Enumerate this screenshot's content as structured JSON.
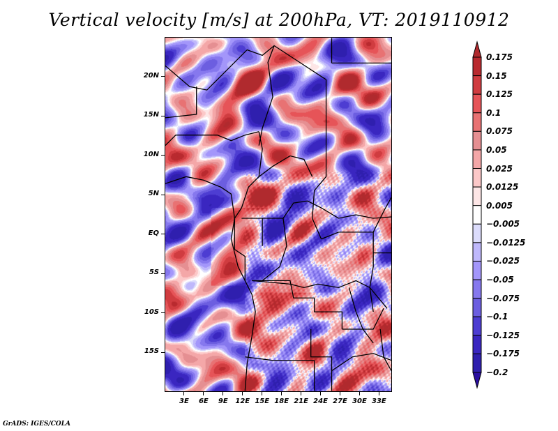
{
  "title": "Vertical velocity [m/s] at 200hPa, VT: 2019110912",
  "credit": "GrADS: IGES/COLA",
  "map": {
    "variable": "Vertical velocity",
    "units": "m/s",
    "level": "200hPa",
    "valid_time": "2019110912",
    "lon_range": [
      0,
      35
    ],
    "lat_range": [
      -20,
      25
    ],
    "lat_ticks": [
      {
        "value": 20,
        "label": "20N"
      },
      {
        "value": 15,
        "label": "15N"
      },
      {
        "value": 10,
        "label": "10N"
      },
      {
        "value": 5,
        "label": "5N"
      },
      {
        "value": 0,
        "label": "EQ"
      },
      {
        "value": -5,
        "label": "5S"
      },
      {
        "value": -10,
        "label": "10S"
      },
      {
        "value": -15,
        "label": "15S"
      }
    ],
    "lon_ticks": [
      {
        "value": 3,
        "label": "3E"
      },
      {
        "value": 6,
        "label": "6E"
      },
      {
        "value": 9,
        "label": "9E"
      },
      {
        "value": 12,
        "label": "12E"
      },
      {
        "value": 15,
        "label": "15E"
      },
      {
        "value": 18,
        "label": "18E"
      },
      {
        "value": 21,
        "label": "21E"
      },
      {
        "value": 24,
        "label": "24E"
      },
      {
        "value": 27,
        "label": "27E"
      },
      {
        "value": 30,
        "label": "30E"
      },
      {
        "value": 33,
        "label": "33E"
      }
    ]
  },
  "colorbar": {
    "labels": [
      "0.175",
      "0.15",
      "0.125",
      "0.1",
      "0.075",
      "0.05",
      "0.025",
      "0.0125",
      "0.005",
      "-0.005",
      "-0.0125",
      "-0.025",
      "-0.05",
      "-0.075",
      "-0.1",
      "-0.125",
      "-0.175",
      "-0.2"
    ],
    "top_arrow_color": "#b02a2e",
    "bottom_arrow_color": "#2a0ea0",
    "bins": [
      {
        "color": "#b92a2f"
      },
      {
        "color": "#d03c40"
      },
      {
        "color": "#e65458"
      },
      {
        "color": "#e87273"
      },
      {
        "color": "#e58f92"
      },
      {
        "color": "#f4a7a8"
      },
      {
        "color": "#fcc8c8"
      },
      {
        "color": "#fde6e6"
      },
      {
        "color": "#ffffff"
      },
      {
        "color": "#dcdcfb"
      },
      {
        "color": "#bfb8fb"
      },
      {
        "color": "#a396fa"
      },
      {
        "color": "#8678ee"
      },
      {
        "color": "#6c5ee0"
      },
      {
        "color": "#4d3dd2"
      },
      {
        "color": "#3a26c0"
      },
      {
        "color": "#2f1fae"
      }
    ]
  }
}
